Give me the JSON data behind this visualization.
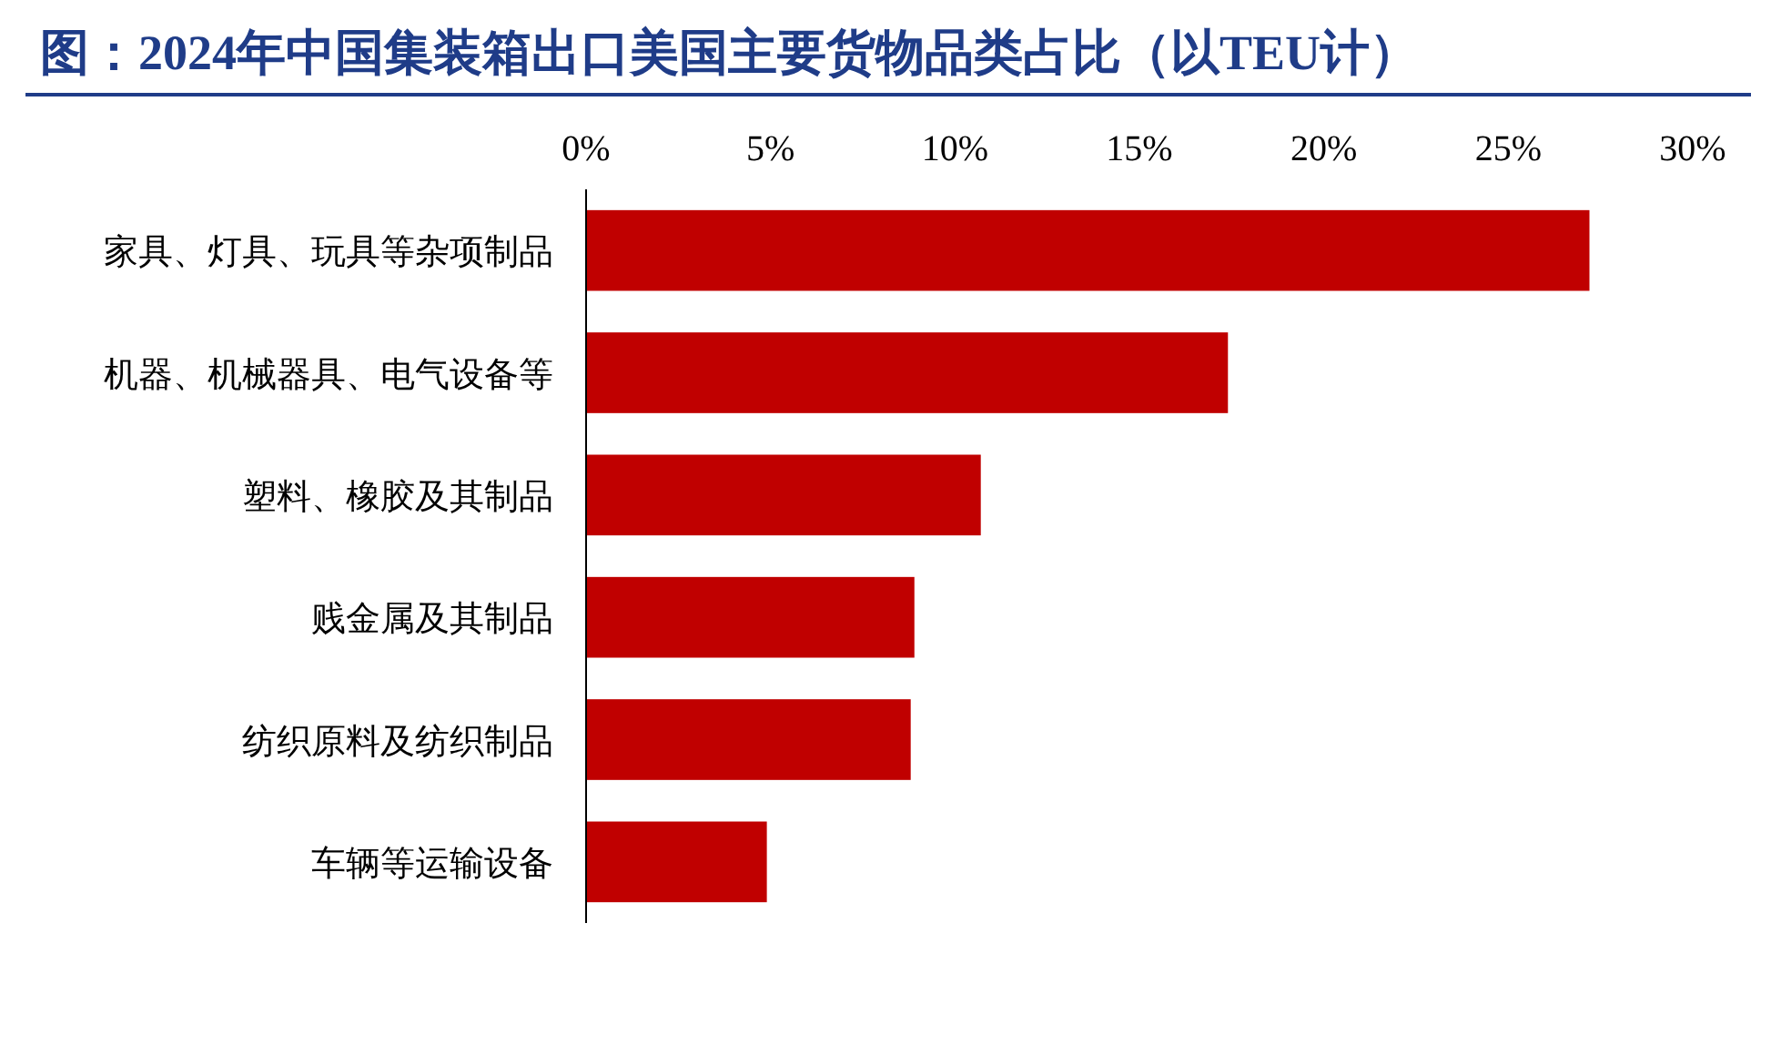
{
  "chart_data": {
    "type": "bar",
    "orientation": "horizontal",
    "title": "图：2024年中国集装箱出口美国主要货物品类占比（以TEU计）",
    "categories": [
      "家具、灯具、玩具等杂项制品",
      "机器、机械器具、电气设备等",
      "塑料、橡胶及其制品",
      "贱金属及其制品",
      "纺织原料及纺织制品",
      "车辆等运输设备"
    ],
    "values": [
      27.2,
      17.4,
      10.7,
      8.9,
      8.8,
      4.9
    ],
    "color": "#c00000",
    "xlim": [
      0,
      30
    ],
    "xticks": [
      {
        "value": 0,
        "label": "0%"
      },
      {
        "value": 5,
        "label": "5%"
      },
      {
        "value": 10,
        "label": "10%"
      },
      {
        "value": 15,
        "label": "15%"
      },
      {
        "value": 20,
        "label": "20%"
      },
      {
        "value": 25,
        "label": "25%"
      },
      {
        "value": 30,
        "label": "30%"
      }
    ],
    "grid": false
  }
}
